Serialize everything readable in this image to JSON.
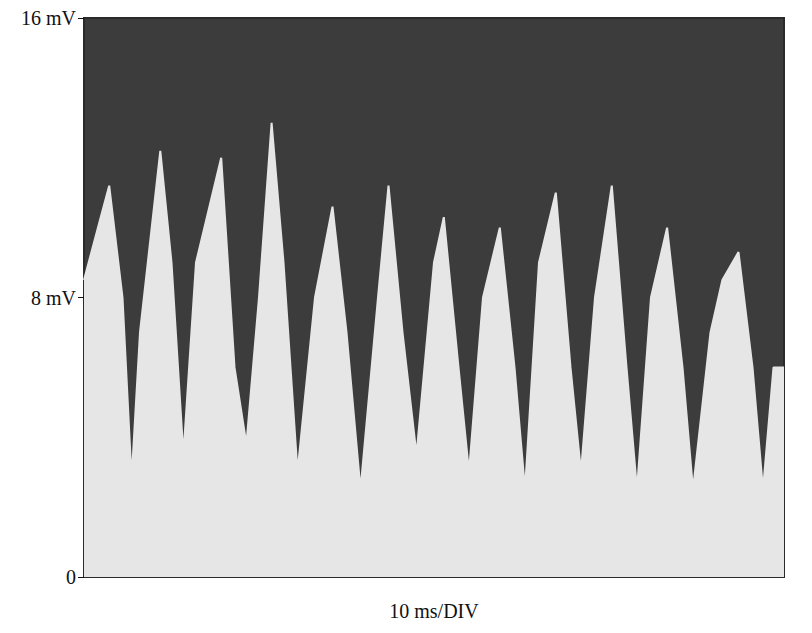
{
  "chart_data": {
    "type": "area",
    "xlabel": "10 ms/DIV",
    "x": [
      0,
      2,
      3.6,
      5.5,
      6.8,
      8,
      10.9,
      12.5,
      14.2,
      16,
      19.6,
      21.5,
      23.2,
      25,
      26.8,
      28.5,
      30.5,
      33,
      35.5,
      37.5,
      39.5,
      42,
      43.5,
      45.5,
      47.5,
      50,
      51.4,
      53.5,
      55,
      57,
      59.4,
      61.5,
      63,
      65,
      67.4,
      69.5,
      71,
      73,
      75.4,
      77.5,
      79,
      81,
      83.3,
      85.5,
      87,
      89.5,
      91.2,
      93.5,
      95.5,
      97,
      98.5,
      100
    ],
    "values": [
      8.5,
      10,
      11.2,
      8,
      2.8,
      7,
      12.2,
      9,
      3.5,
      9,
      12,
      6,
      3.8,
      8,
      13,
      9,
      3.0,
      8,
      10.6,
      7,
      2.5,
      8,
      11.2,
      7,
      3.5,
      9,
      10.3,
      6,
      3.0,
      8,
      10,
      6,
      2.5,
      9,
      11,
      6,
      3,
      8,
      11.2,
      6,
      2.5,
      8,
      10,
      6,
      2.5,
      7,
      8.5,
      9.3,
      6,
      2.5,
      6,
      6
    ],
    "color": "#e6e6e6",
    "xlim": [
      0,
      100
    ],
    "ylim": [
      0,
      16
    ],
    "yticks": [
      {
        "value": 0,
        "label": "0"
      },
      {
        "value": 8,
        "label": "8 mV"
      },
      {
        "value": 16,
        "label": "16 mV"
      }
    ],
    "grid": false,
    "tick_labels": "y"
  }
}
